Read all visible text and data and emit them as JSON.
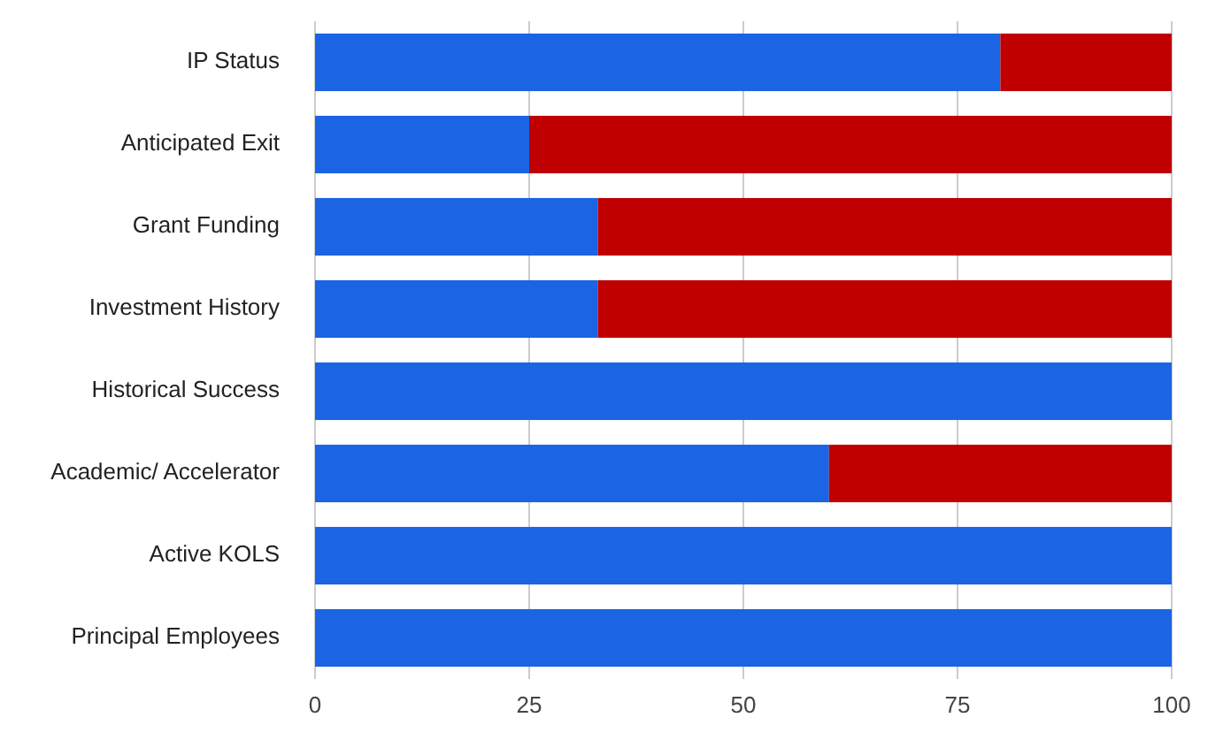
{
  "chart_data": {
    "type": "bar",
    "orientation": "horizontal",
    "stacked": true,
    "categories": [
      "IP Status",
      "Anticipated Exit",
      "Grant Funding",
      "Investment History",
      "Historical Success",
      "Academic/ Accelerator",
      "Active KOLS",
      "Principal Employees"
    ],
    "series": [
      {
        "color": "#1b64e3",
        "values": [
          80,
          25,
          33,
          33,
          100,
          60,
          100,
          100
        ]
      },
      {
        "color": "#c00000",
        "values": [
          20,
          75,
          67,
          67,
          0,
          40,
          0,
          0
        ]
      }
    ],
    "xlim": [
      0,
      100
    ],
    "xticks": [
      0,
      25,
      50,
      75,
      100
    ],
    "grid": "x"
  }
}
